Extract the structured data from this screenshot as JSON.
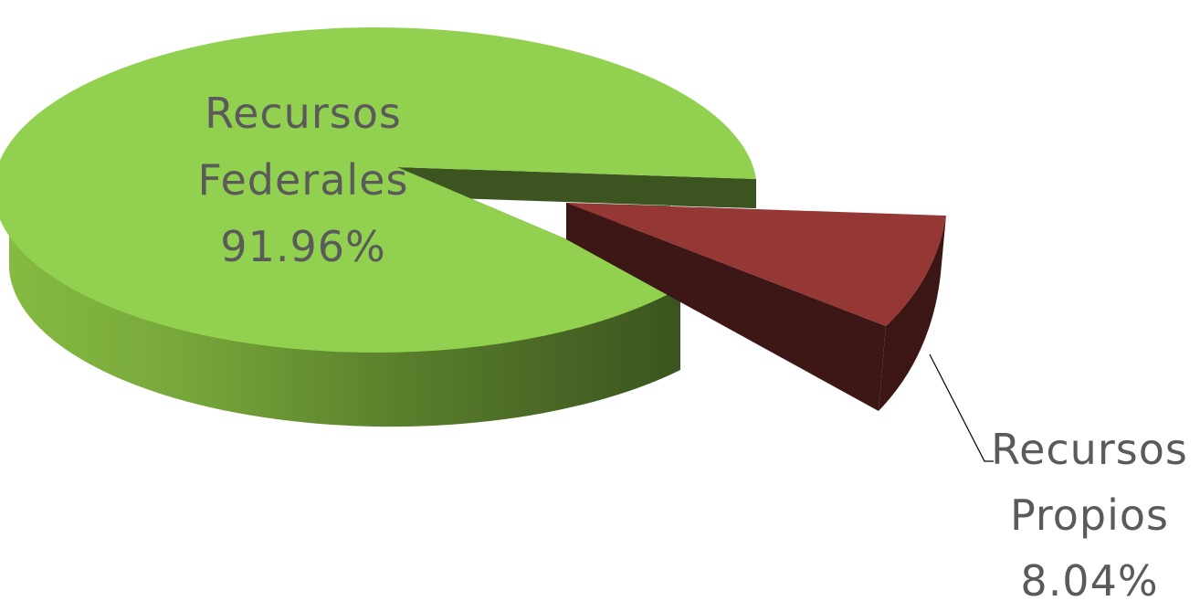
{
  "chart_data": {
    "type": "pie",
    "style": "3d-exploded",
    "title": "",
    "slices": [
      {
        "name_lines": [
          "Recursos",
          "Federales"
        ],
        "value_label": "91.96%",
        "value": 91.96,
        "color_top": "#92d050",
        "color_side_light": "#7fb23c",
        "color_side_dark": "#3b5420"
      },
      {
        "name_lines": [
          "Recursos",
          "Propios"
        ],
        "value_label": "8.04%",
        "value": 8.04,
        "color_top": "#953735",
        "color_side_light": "#632523",
        "color_side_dark": "#3d1716"
      }
    ],
    "exploded_slice": "Recursos Propios",
    "legend": "none"
  }
}
